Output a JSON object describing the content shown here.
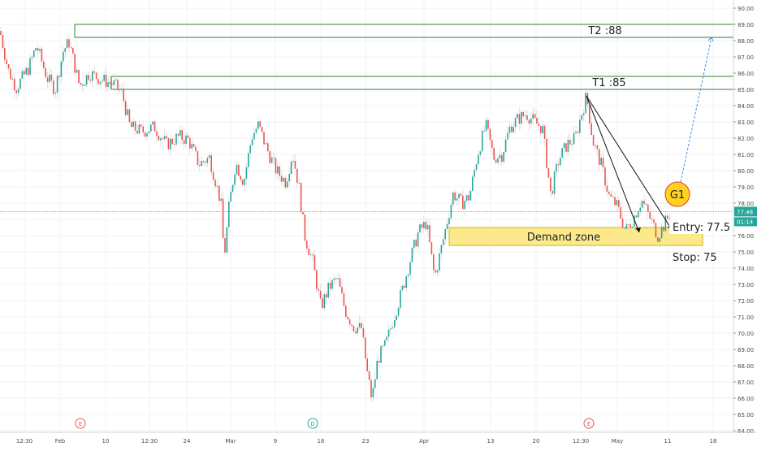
{
  "chart_data": {
    "type": "candlestick",
    "price_axis": {
      "min": 64,
      "max": 90,
      "step": 1,
      "last_price_label": "77.48",
      "countdown_label": "01:14",
      "last_price_color": "#26a69a"
    },
    "time_axis": {
      "ticks": [
        "12:30",
        "Feb",
        "10",
        "12:30",
        "24",
        "Mar",
        "9",
        "16",
        "23",
        "Apr",
        "13",
        "20",
        "12:30",
        "May",
        "11",
        "18"
      ]
    },
    "event_markers": [
      {
        "label": "E",
        "color": "#ef5350"
      },
      {
        "label": "D",
        "color": "#26a69a"
      },
      {
        "label": "E",
        "color": "#ef5350"
      }
    ],
    "levels": [
      {
        "label": "T2 :88",
        "low": 88.2,
        "high": 89.0
      },
      {
        "label": "T1 :85",
        "low": 85.0,
        "high": 85.8
      }
    ],
    "demand_zone": {
      "label": "Demand zone",
      "low": 75.4,
      "high": 76.5,
      "fill": "#fce98c"
    },
    "annotations": {
      "entry": "Entry: 77.5",
      "stop": "Stop: 75",
      "badge": "G1"
    },
    "trend_lines": [
      {
        "from": [
          84.6
        ],
        "to": [
          76.2
        ]
      },
      {
        "from": [
          84.6
        ],
        "to": [
          76.3
        ]
      }
    ],
    "projection": {
      "from_price": 79.3,
      "to_price": 88.2
    },
    "colors": {
      "up": "#26a69a",
      "down": "#ef5350",
      "wick": "#cfcfcf",
      "line": "#2e7d32"
    },
    "price_anchors": [
      [
        0,
        88.6
      ],
      [
        10,
        86.2
      ],
      [
        20,
        85.1
      ],
      [
        35,
        86.3
      ],
      [
        45,
        87.7
      ],
      [
        58,
        85.7
      ],
      [
        68,
        85.0
      ],
      [
        78,
        87.4
      ],
      [
        85,
        87.9
      ],
      [
        98,
        85.2
      ],
      [
        110,
        86.0
      ],
      [
        125,
        85.6
      ],
      [
        140,
        85.3
      ],
      [
        150,
        84.8
      ],
      [
        160,
        82.7
      ],
      [
        175,
        82.4
      ],
      [
        190,
        82.7
      ],
      [
        205,
        81.6
      ],
      [
        220,
        82.1
      ],
      [
        232,
        81.9
      ],
      [
        245,
        80.4
      ],
      [
        258,
        80.8
      ],
      [
        272,
        78.0
      ],
      [
        276,
        74.6
      ],
      [
        282,
        77.8
      ],
      [
        290,
        80.5
      ],
      [
        300,
        79.3
      ],
      [
        310,
        82.1
      ],
      [
        318,
        82.8
      ],
      [
        328,
        81.4
      ],
      [
        340,
        80.0
      ],
      [
        352,
        79.3
      ],
      [
        360,
        81.1
      ],
      [
        368,
        79.0
      ],
      [
        375,
        76.0
      ],
      [
        385,
        74.4
      ],
      [
        395,
        71.6
      ],
      [
        405,
        72.8
      ],
      [
        415,
        73.4
      ],
      [
        425,
        71.4
      ],
      [
        435,
        70.4
      ],
      [
        445,
        70.3
      ],
      [
        452,
        67.6
      ],
      [
        458,
        65.9
      ],
      [
        465,
        68.4
      ],
      [
        475,
        69.3
      ],
      [
        485,
        71.0
      ],
      [
        495,
        72.6
      ],
      [
        505,
        74.5
      ],
      [
        515,
        76.2
      ],
      [
        525,
        76.8
      ],
      [
        535,
        73.4
      ],
      [
        545,
        75.6
      ],
      [
        558,
        78.6
      ],
      [
        568,
        78.0
      ],
      [
        578,
        78.4
      ],
      [
        588,
        81.0
      ],
      [
        598,
        82.8
      ],
      [
        608,
        80.8
      ],
      [
        618,
        81.0
      ],
      [
        628,
        82.7
      ],
      [
        638,
        83.2
      ],
      [
        648,
        83.5
      ],
      [
        658,
        83.0
      ],
      [
        668,
        82.6
      ],
      [
        678,
        78.5
      ],
      [
        688,
        80.7
      ],
      [
        698,
        81.6
      ],
      [
        708,
        82.0
      ],
      [
        716,
        83.5
      ],
      [
        722,
        84.6
      ],
      [
        730,
        81.8
      ],
      [
        740,
        80.4
      ],
      [
        750,
        78.4
      ],
      [
        760,
        77.8
      ],
      [
        770,
        76.3
      ],
      [
        780,
        77.1
      ],
      [
        790,
        78.2
      ],
      [
        800,
        77.1
      ],
      [
        810,
        76.0
      ],
      [
        818,
        76.7
      ],
      [
        826,
        77.5
      ]
    ]
  }
}
